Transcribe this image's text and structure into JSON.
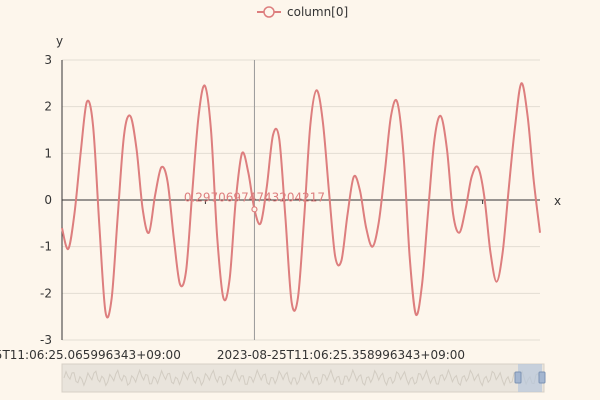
{
  "colors": {
    "background": "#fdf6ec",
    "series": "#dd7e7e",
    "grid": "#e3ddd3",
    "axis": "#333333",
    "crosshair": "#999999",
    "zoom_fill": "#e9e4dc",
    "zoom_window": "#b8c7dc"
  },
  "chart_data": {
    "type": "line",
    "xlabel": "x",
    "ylabel": "y",
    "ylim": [
      -3,
      3
    ],
    "y_ticks": [
      "3",
      "2",
      "1",
      "0",
      "-1",
      "-2",
      "-3"
    ],
    "x_tick_labels": [
      "25T11:06:25.065996343+09:00",
      "2023-08-25T11:06:25.358996343+09:00"
    ],
    "grid": true,
    "legend_position": "top-center",
    "series": [
      {
        "name": "column[0]",
        "x_start": 0,
        "x_end": 84,
        "values": [
          -0.6,
          -1.05,
          -0.3,
          1.0,
          2.1,
          1.6,
          -0.5,
          -2.4,
          -2.1,
          -0.3,
          1.4,
          1.8,
          1.1,
          -0.2,
          -0.7,
          0.1,
          0.7,
          0.4,
          -0.8,
          -1.8,
          -1.5,
          0.2,
          1.8,
          2.45,
          1.5,
          -0.8,
          -2.1,
          -1.7,
          0.0,
          1.0,
          0.6,
          -0.2,
          -0.5,
          0.3,
          1.4,
          1.3,
          -0.4,
          -2.2,
          -2.1,
          -0.4,
          1.6,
          2.35,
          1.7,
          0.2,
          -1.2,
          -1.3,
          -0.3,
          0.5,
          0.2,
          -0.6,
          -1.0,
          -0.5,
          0.6,
          1.8,
          2.1,
          1.0,
          -1.2,
          -2.45,
          -1.8,
          -0.2,
          1.3,
          1.8,
          1.1,
          -0.3,
          -0.7,
          -0.2,
          0.5,
          0.7,
          0.1,
          -1.1,
          -1.75,
          -1.1,
          0.3,
          1.6,
          2.5,
          1.8,
          0.4,
          -0.7
        ]
      }
    ],
    "crosshair": {
      "series_index": 0,
      "point_index": 31,
      "label": "0.29706974743204217"
    }
  }
}
